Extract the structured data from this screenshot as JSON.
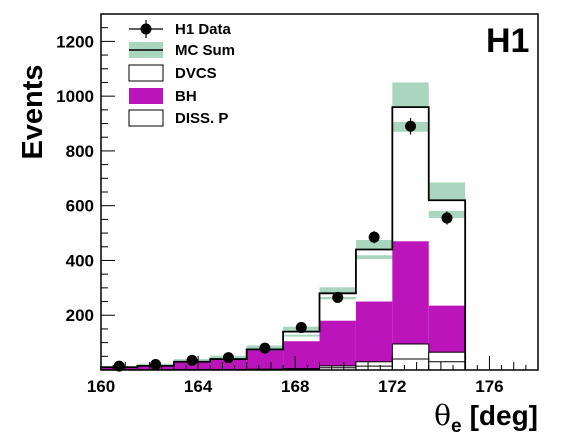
{
  "chart_data": {
    "type": "bar",
    "experiment_label": "H1",
    "xlabel_symbol": "θ",
    "xlabel_subscript": "e",
    "xlabel_unit": "[deg]",
    "ylabel": "Events",
    "xlim": [
      160,
      178
    ],
    "ylim": [
      0,
      1300
    ],
    "x_ticks": [
      "160",
      "164",
      "168",
      "172",
      "176"
    ],
    "y_ticks": [
      "200",
      "400",
      "600",
      "800",
      "1000",
      "1200"
    ],
    "bin_edges": [
      160,
      161.5,
      163,
      164.5,
      166,
      167.5,
      169,
      170.5,
      172,
      173.5,
      175
    ],
    "legend": {
      "position": "top-left",
      "entries": [
        "H1 Data",
        "MC Sum",
        "DVCS",
        "BH",
        "DISS. P"
      ]
    },
    "colors": {
      "bh": "#bb14bb",
      "mc_band": "#aad6c0",
      "line": "#000000"
    },
    "series": [
      {
        "name": "H1 Data",
        "x": [
          160.75,
          162.25,
          163.75,
          165.25,
          166.75,
          168.25,
          169.75,
          171.25,
          172.75,
          174.25
        ],
        "values": [
          14,
          20,
          35,
          45,
          80,
          155,
          265,
          485,
          890,
          555
        ],
        "errors": [
          4,
          5,
          6,
          7,
          9,
          12,
          16,
          22,
          30,
          24
        ]
      },
      {
        "name": "MC Sum",
        "values": [
          10,
          15,
          30,
          40,
          75,
          140,
          280,
          440,
          960,
          620
        ],
        "band": [
          5,
          8,
          10,
          12,
          15,
          18,
          22,
          35,
          90,
          65
        ]
      },
      {
        "name": "DVCS",
        "values": [
          1,
          1,
          2,
          2,
          3,
          5,
          15,
          30,
          95,
          65
        ]
      },
      {
        "name": "BH",
        "values": [
          10,
          14,
          28,
          38,
          72,
          105,
          180,
          250,
          470,
          235
        ]
      },
      {
        "name": "DISS. P",
        "values": [
          0,
          0,
          1,
          1,
          1,
          2,
          8,
          14,
          40,
          30
        ]
      }
    ]
  }
}
